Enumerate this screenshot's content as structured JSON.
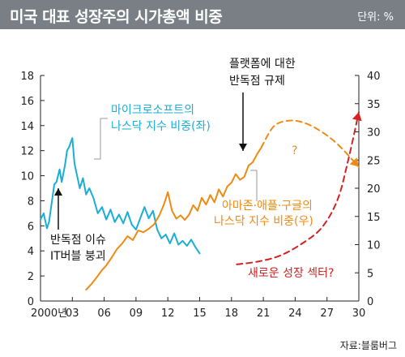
{
  "header": {
    "title": "미국 대표 성장주의 시가총액 비중",
    "unit": "단위: %"
  },
  "source": "자료:블룸버그",
  "colors": {
    "cyan": "#1aaed6",
    "orange": "#ef8a12",
    "red": "#d42222",
    "title_bg": "#7a7f86"
  },
  "annotations": {
    "cyan_label_1": "마이크로소프트의",
    "cyan_label_2": "나스닥 지수 비중(좌)",
    "orange_label_1": "아마존·애플·구글의",
    "orange_label_2": "나스닥 지수 비중(우)",
    "semi_label_1": "반독점 이슈",
    "semi_label_2": "IT버블 붕괴",
    "platform_label_1": "플랫폼에 대한",
    "platform_label_2": "반독점 규제",
    "sector_label": "새로운 성장 섹터?",
    "question": "?"
  },
  "chart_data": {
    "type": "line",
    "x_ticks": [
      "2000년",
      "03",
      "06",
      "09",
      "12",
      "15",
      "18",
      "21",
      "24",
      "27",
      "30"
    ],
    "x_tick_values": [
      2000,
      2003,
      2006,
      2009,
      2012,
      2015,
      2018,
      2021,
      2024,
      2027,
      2030
    ],
    "xlim": [
      2000,
      2030
    ],
    "y_left": {
      "ylim": [
        0,
        18
      ],
      "ticks": [
        0,
        2,
        4,
        6,
        8,
        10,
        12,
        14,
        16,
        18
      ]
    },
    "y_right": {
      "ylim": [
        0,
        40
      ],
      "ticks": [
        0,
        5,
        10,
        15,
        20,
        25,
        30,
        35,
        40
      ]
    },
    "series": [
      {
        "name": "마이크로소프트의 나스닥 지수 비중(좌)",
        "axis": "left",
        "x": [
          2000.0,
          2000.3,
          2000.6,
          2000.8,
          2001.0,
          2001.3,
          2001.5,
          2001.8,
          2002.0,
          2002.3,
          2002.5,
          2002.7,
          2003.0,
          2003.2,
          2003.4,
          2003.7,
          2004.0,
          2004.3,
          2004.6,
          2005.0,
          2005.4,
          2005.8,
          2006.2,
          2006.6,
          2007.0,
          2007.4,
          2007.8,
          2008.2,
          2008.6,
          2009.0,
          2009.4,
          2009.8,
          2010.2,
          2010.6,
          2011.0,
          2011.4,
          2011.8,
          2012.2,
          2012.6,
          2013.0,
          2013.4,
          2013.8,
          2014.2,
          2014.6,
          2015.0
        ],
        "values": [
          6.5,
          7.0,
          5.8,
          6.3,
          7.5,
          9.3,
          9.5,
          10.5,
          9.5,
          10.8,
          12.0,
          12.3,
          13.0,
          11.0,
          10.2,
          9.0,
          9.8,
          8.5,
          9.0,
          8.2,
          7.0,
          7.5,
          6.5,
          7.3,
          6.3,
          6.9,
          6.2,
          7.1,
          6.1,
          5.7,
          6.6,
          7.5,
          6.6,
          7.2,
          5.7,
          5.0,
          5.3,
          4.6,
          5.4,
          4.5,
          4.8,
          4.4,
          4.9,
          4.3,
          3.8
        ]
      },
      {
        "name": "아마존·애플·구글의 나스닥 지수 비중(우)",
        "axis": "right",
        "x": [
          2004.3,
          2004.8,
          2005.3,
          2005.8,
          2006.2,
          2006.7,
          2007.2,
          2007.7,
          2008.2,
          2008.7,
          2009.2,
          2009.7,
          2010.2,
          2010.7,
          2011.2,
          2011.6,
          2012.0,
          2012.4,
          2012.8,
          2013.2,
          2013.6,
          2014.0,
          2014.4,
          2014.8,
          2015.2,
          2015.6,
          2016.0,
          2016.4,
          2016.8,
          2017.2,
          2017.6,
          2018.0,
          2018.4,
          2018.8,
          2019.2,
          2019.6,
          2020.0,
          2020.4,
          2020.8
        ],
        "values": [
          2.0,
          3.0,
          4.2,
          5.5,
          6.3,
          7.7,
          9.2,
          10.2,
          11.5,
          10.8,
          12.5,
          12.2,
          12.8,
          13.6,
          15.2,
          17.0,
          19.3,
          16.0,
          14.6,
          15.2,
          14.4,
          15.3,
          17.0,
          16.0,
          18.3,
          17.1,
          18.8,
          17.5,
          19.8,
          18.5,
          20.3,
          21.0,
          22.5,
          21.5,
          22.0,
          24.0,
          24.6,
          26.0,
          27.2
        ]
      },
      {
        "name": "",
        "axis": "right",
        "style": "dashed",
        "x": [
          2020.8,
          2022.0,
          2023.5,
          2025.0,
          2026.5,
          2028.0,
          2030.0
        ],
        "values": [
          27.2,
          31.0,
          32.0,
          31.5,
          30.0,
          27.8,
          23.8
        ]
      },
      {
        "name": "",
        "axis": "right",
        "style": "dashed",
        "x": [
          2018.5,
          2020.5,
          2022.5,
          2024.5,
          2026.5,
          2028.0,
          2029.0,
          2030.0
        ],
        "values": [
          6.5,
          7.0,
          8.0,
          10.0,
          13.0,
          18.0,
          25.0,
          33.5
        ]
      }
    ]
  }
}
